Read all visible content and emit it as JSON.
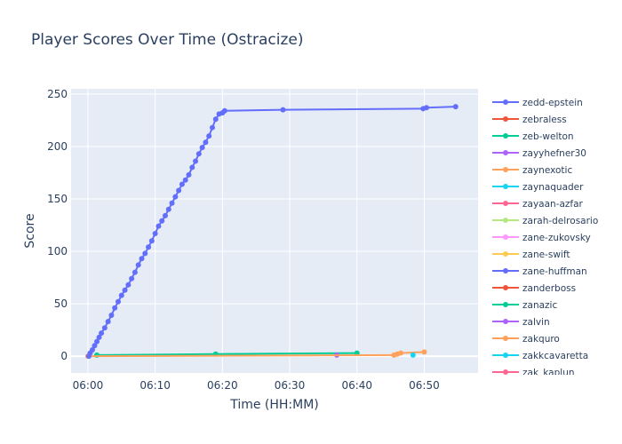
{
  "chart_data": {
    "type": "line",
    "title": "Player Scores Over Time (Ostracize)",
    "xlabel": "Time (HH:MM)",
    "ylabel": "Score",
    "x_ticks": [
      "06:00",
      "06:10",
      "06:20",
      "06:30",
      "06:40",
      "06:50"
    ],
    "y_ticks": [
      0,
      50,
      100,
      150,
      200,
      250
    ],
    "xlim_minutes": [
      357.5,
      418.0
    ],
    "ylim": [
      -16,
      255
    ],
    "grid": true,
    "legend_position": "right",
    "series": [
      {
        "name": "zedd-epstein",
        "color": "#636efa",
        "x": [
          "06:00:08",
          "06:00:20",
          "06:00:40",
          "06:01:00",
          "06:01:20",
          "06:01:40",
          "06:02:00",
          "06:02:30",
          "06:03:00",
          "06:03:30",
          "06:04:00",
          "06:04:30",
          "06:05:00",
          "06:05:30",
          "06:06:00",
          "06:06:30",
          "06:07:00",
          "06:07:30",
          "06:08:00",
          "06:08:30",
          "06:09:00",
          "06:09:30",
          "06:10:00",
          "06:10:30",
          "06:11:00",
          "06:11:30",
          "06:12:00",
          "06:12:30",
          "06:13:00",
          "06:13:30",
          "06:14:00",
          "06:14:30",
          "06:15:00",
          "06:15:30",
          "06:16:00",
          "06:16:30",
          "06:17:00",
          "06:17:30",
          "06:18:00",
          "06:18:30",
          "06:19:00",
          "06:19:30",
          "06:20:00",
          "06:20:20",
          "06:29:00",
          "06:49:50",
          "06:50:20",
          "06:54:40"
        ],
        "y": [
          0,
          3,
          6,
          10,
          14,
          18,
          22,
          27,
          33,
          39,
          46,
          52,
          58,
          63,
          68,
          74,
          80,
          87,
          93,
          98,
          104,
          110,
          117,
          124,
          129,
          134,
          140,
          146,
          152,
          158,
          164,
          168,
          173,
          180,
          186,
          193,
          199,
          204,
          210,
          218,
          226,
          231,
          232,
          234,
          235,
          236,
          237,
          238
        ]
      },
      {
        "name": "zebraless",
        "color": "#ef553b",
        "x": [],
        "y": []
      },
      {
        "name": "zeb-welton",
        "color": "#00cc96",
        "x": [
          "06:01:20",
          "06:19:00",
          "06:40:00"
        ],
        "y": [
          1,
          2,
          3
        ]
      },
      {
        "name": "zayyhefner30",
        "color": "#ab63fa",
        "x": [
          "06:37:00"
        ],
        "y": [
          1
        ]
      },
      {
        "name": "zaynexotic",
        "color": "#ffa15a",
        "x": [
          "06:00:00",
          "06:45:30",
          "06:46:00",
          "06:46:30",
          "06:50:00"
        ],
        "y": [
          0,
          1,
          2,
          3,
          4
        ]
      },
      {
        "name": "zaynaquader",
        "color": "#19d3f3",
        "x": [
          "06:48:20"
        ],
        "y": [
          1
        ]
      },
      {
        "name": "zayaan-azfar",
        "color": "#ff6692",
        "x": [],
        "y": []
      },
      {
        "name": "zarah-delrosario",
        "color": "#b6e880",
        "x": [],
        "y": []
      },
      {
        "name": "zane-zukovsky",
        "color": "#ff97ff",
        "x": [],
        "y": []
      },
      {
        "name": "zane-swift",
        "color": "#fecb52",
        "x": [],
        "y": []
      },
      {
        "name": "zane-huffman",
        "color": "#636efa",
        "x": [],
        "y": []
      },
      {
        "name": "zanderboss",
        "color": "#ef553b",
        "x": [],
        "y": []
      },
      {
        "name": "zanazic",
        "color": "#00cc96",
        "x": [],
        "y": []
      },
      {
        "name": "zalvin",
        "color": "#ab63fa",
        "x": [],
        "y": []
      },
      {
        "name": "zakquro",
        "color": "#ffa15a",
        "x": [],
        "y": []
      },
      {
        "name": "zakkcavaretta",
        "color": "#19d3f3",
        "x": [],
        "y": []
      },
      {
        "name": "zak_kaplun",
        "color": "#ff6692",
        "x": [],
        "y": []
      }
    ]
  }
}
